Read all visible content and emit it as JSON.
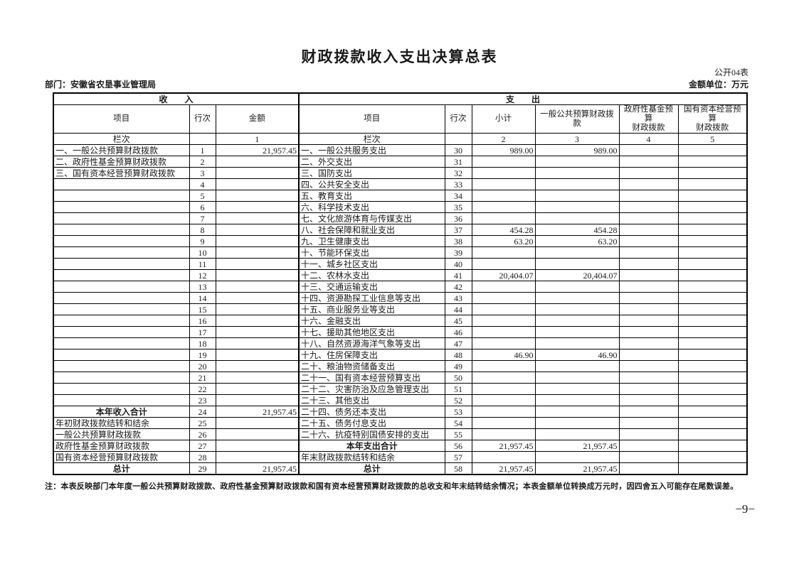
{
  "page": {
    "title": "财政拨款收入支出决算总表",
    "table_code": "公开04表",
    "department_line": "部门：安徽省农垦事业管理局",
    "unit_line": "金额单位：万元",
    "note": "注：本表反映部门本年度一般公共预算财政拨款、政府性基金预算财政拨款和国有资本经营预算财政拨款的总收支和年末结转结余情况；本表金额单位转换成万元时，因四舍五入可能存在尾数误差。",
    "page_number": "−9−"
  },
  "table": {
    "section_income": "收　　入",
    "section_expense": "支　　出",
    "columns": [
      "项目",
      "行次",
      "金额",
      "项目",
      "行次",
      "小计",
      "一般公共预算财政拨款",
      "政府性基金预算\n财政拨款",
      "国有资本经营预算\n财政拨款"
    ],
    "colnum_row": [
      "栏次",
      "",
      "1",
      "栏次",
      "",
      "2",
      "3",
      "4",
      "5"
    ],
    "rows": [
      {
        "c": [
          "一、一般公共预算财政拨款",
          "1",
          "21,957.45",
          "一、一般公共服务支出",
          "30",
          "989.00",
          "989.00",
          "",
          ""
        ]
      },
      {
        "c": [
          "二、政府性基金预算财政拨款",
          "2",
          "",
          "二、外交支出",
          "31",
          "",
          "",
          "",
          ""
        ]
      },
      {
        "c": [
          "三、国有资本经营预算财政拨款",
          "3",
          "",
          "三、国防支出",
          "32",
          "",
          "",
          "",
          ""
        ]
      },
      {
        "c": [
          "",
          "4",
          "",
          "四、公共安全支出",
          "33",
          "",
          "",
          "",
          ""
        ]
      },
      {
        "c": [
          "",
          "5",
          "",
          "五、教育支出",
          "34",
          "",
          "",
          "",
          ""
        ]
      },
      {
        "c": [
          "",
          "6",
          "",
          "六、科学技术支出",
          "35",
          "",
          "",
          "",
          ""
        ]
      },
      {
        "c": [
          "",
          "7",
          "",
          "七、文化旅游体育与传媒支出",
          "36",
          "",
          "",
          "",
          ""
        ]
      },
      {
        "c": [
          "",
          "8",
          "",
          "八、社会保障和就业支出",
          "37",
          "454.28",
          "454.28",
          "",
          ""
        ]
      },
      {
        "c": [
          "",
          "9",
          "",
          "九、卫生健康支出",
          "38",
          "63.20",
          "63.20",
          "",
          ""
        ]
      },
      {
        "c": [
          "",
          "10",
          "",
          "十、节能环保支出",
          "39",
          "",
          "",
          "",
          ""
        ]
      },
      {
        "c": [
          "",
          "11",
          "",
          "十一、城乡社区支出",
          "40",
          "",
          "",
          "",
          ""
        ]
      },
      {
        "c": [
          "",
          "12",
          "",
          "十二、农林水支出",
          "41",
          "20,404.07",
          "20,404.07",
          "",
          ""
        ]
      },
      {
        "c": [
          "",
          "13",
          "",
          "十三、交通运输支出",
          "42",
          "",
          "",
          "",
          ""
        ]
      },
      {
        "c": [
          "",
          "14",
          "",
          "十四、资源勘探工业信息等支出",
          "43",
          "",
          "",
          "",
          ""
        ]
      },
      {
        "c": [
          "",
          "15",
          "",
          "十五、商业服务业等支出",
          "44",
          "",
          "",
          "",
          ""
        ]
      },
      {
        "c": [
          "",
          "16",
          "",
          "十六、金融支出",
          "45",
          "",
          "",
          "",
          ""
        ]
      },
      {
        "c": [
          "",
          "17",
          "",
          "十七、援助其他地区支出",
          "46",
          "",
          "",
          "",
          ""
        ]
      },
      {
        "c": [
          "",
          "18",
          "",
          "十八、自然资源海洋气象等支出",
          "47",
          "",
          "",
          "",
          ""
        ]
      },
      {
        "c": [
          "",
          "19",
          "",
          "十九、住房保障支出",
          "48",
          "46.90",
          "46.90",
          "",
          ""
        ]
      },
      {
        "c": [
          "",
          "20",
          "",
          "二十、粮油物资储备支出",
          "49",
          "",
          "",
          "",
          ""
        ]
      },
      {
        "c": [
          "",
          "21",
          "",
          "二十一、国有资本经营预算支出",
          "50",
          "",
          "",
          "",
          ""
        ]
      },
      {
        "c": [
          "",
          "22",
          "",
          "二十二、灾害防治及应急管理支出",
          "51",
          "",
          "",
          "",
          ""
        ]
      },
      {
        "c": [
          "",
          "23",
          "",
          "二十三、其他支出",
          "52",
          "",
          "",
          "",
          ""
        ]
      },
      {
        "c": [
          "本年收入合计",
          "24",
          "21,957.45",
          "二十四、债务还本支出",
          "53",
          "",
          "",
          "",
          ""
        ],
        "it": 1
      },
      {
        "c": [
          "年初财政拨款结转和结余",
          "25",
          "",
          "二十五、债务付息支出",
          "54",
          "",
          "",
          "",
          ""
        ]
      },
      {
        "c": [
          "一般公共预算财政拨款",
          "26",
          "",
          "二十六、抗疫特别国债安排的支出",
          "55",
          "",
          "",
          "",
          ""
        ],
        "ii": 1
      },
      {
        "c": [
          "政府性基金预算财政拨款",
          "27",
          "",
          "本年支出合计",
          "56",
          "21,957.45",
          "21,957.45",
          "",
          ""
        ],
        "ii": 1,
        "et": 1
      },
      {
        "c": [
          "国有资本经营预算财政拨款",
          "28",
          "",
          "年末财政拨款结转和结余",
          "57",
          "",
          "",
          "",
          ""
        ],
        "ii": 1
      },
      {
        "c": [
          "总计",
          "29",
          "21,957.45",
          "总计",
          "58",
          "21,957.45",
          "21,957.45",
          "",
          ""
        ],
        "it": 1,
        "et": 1
      }
    ]
  }
}
